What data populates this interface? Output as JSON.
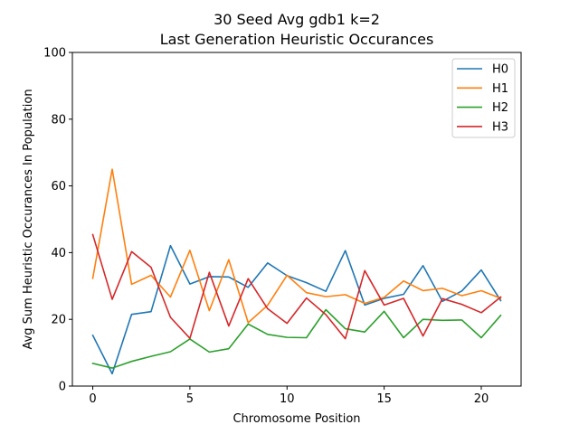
{
  "chart_data": {
    "type": "line",
    "title": [
      "30 Seed Avg gdb1 k=2",
      "Last Generation Heuristic Occurances"
    ],
    "xlabel": "Chromosome Position",
    "ylabel": "Avg Sum Heuristic Occurances In Population",
    "xlim": [
      -1.05,
      22.05
    ],
    "ylim": [
      0,
      100
    ],
    "xticks": [
      0,
      5,
      10,
      15,
      20
    ],
    "yticks": [
      0,
      20,
      40,
      60,
      80,
      100
    ],
    "grid": false,
    "legend_position": "top-right",
    "x": [
      0,
      1,
      2,
      3,
      4,
      5,
      6,
      7,
      8,
      9,
      10,
      11,
      12,
      13,
      14,
      15,
      16,
      17,
      18,
      19,
      20,
      21
    ],
    "series": [
      {
        "name": "H0",
        "color": "#1f77b4",
        "values": [
          15.2,
          3.7,
          21.5,
          22.3,
          42.1,
          30.6,
          32.8,
          32.7,
          29.6,
          36.9,
          33.1,
          31.0,
          28.4,
          40.6,
          24.3,
          26.3,
          27.5,
          36.1,
          25.4,
          28.5,
          34.8,
          25.6
        ]
      },
      {
        "name": "H1",
        "color": "#ff7f0e",
        "values": [
          32.3,
          65.0,
          30.5,
          33.2,
          26.7,
          40.7,
          22.6,
          37.9,
          19.0,
          24.2,
          33.2,
          28.0,
          26.8,
          27.4,
          24.8,
          26.6,
          31.5,
          28.6,
          29.3,
          27.1,
          28.6,
          26.3
        ]
      },
      {
        "name": "H2",
        "color": "#2ca02c",
        "values": [
          6.8,
          5.4,
          7.4,
          8.9,
          10.3,
          14.1,
          10.2,
          11.2,
          18.6,
          15.5,
          14.6,
          14.5,
          22.9,
          17.2,
          16.2,
          22.4,
          14.5,
          20.0,
          19.7,
          19.8,
          14.5,
          21.2
        ]
      },
      {
        "name": "H3",
        "color": "#d62728",
        "values": [
          45.4,
          26.0,
          40.3,
          35.6,
          20.6,
          14.3,
          34.1,
          18.0,
          32.2,
          23.2,
          18.8,
          26.4,
          21.4,
          14.2,
          34.6,
          24.3,
          26.3,
          15.0,
          26.2,
          24.5,
          22.0,
          26.7
        ]
      }
    ]
  }
}
